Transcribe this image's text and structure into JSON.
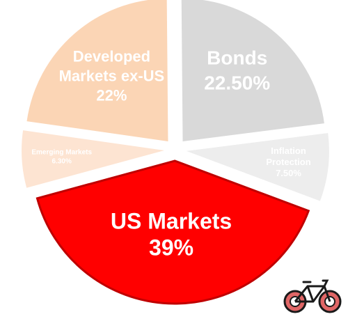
{
  "chart_data": {
    "type": "pie",
    "title": "",
    "slices": [
      {
        "label": "Bonds",
        "label_lines": [
          "Bonds",
          "22.50%"
        ],
        "value": 22.5,
        "display": "22.50%",
        "color": "#d9d9d9",
        "text_color": "#ffffff",
        "highlighted": false
      },
      {
        "label": "Inflation Protection",
        "label_lines": [
          "Inflation",
          "Protection",
          "7.50%"
        ],
        "value": 7.5,
        "display": "7.50%",
        "color": "#ededed",
        "text_color": "#ffffff",
        "highlighted": false
      },
      {
        "label": "US Markets",
        "label_lines": [
          "US Markets",
          "39%"
        ],
        "value": 39,
        "display": "39%",
        "color": "#ff0000",
        "text_color": "#ffffff",
        "highlighted": true
      },
      {
        "label": "Emerging Markets",
        "label_lines": [
          "Emerging Markets",
          "6.30%"
        ],
        "value": 6.3,
        "display": "6.30%",
        "color": "#fde4d2",
        "text_color": "#ffffff",
        "highlighted": false
      },
      {
        "label": "Developed Markets ex-US",
        "label_lines": [
          "Developed",
          "Markets ex-US",
          "22%"
        ],
        "value": 22,
        "display": "22%",
        "color": "#fbd5b5",
        "text_color": "#ffffff",
        "highlighted": false
      }
    ],
    "legend": "none",
    "highlight_border_color": "#c00000"
  },
  "decoration": {
    "icon": "bicycle-icon",
    "icon_colors": {
      "frame": "#1a1a1a",
      "wheels": "#e06666"
    }
  }
}
